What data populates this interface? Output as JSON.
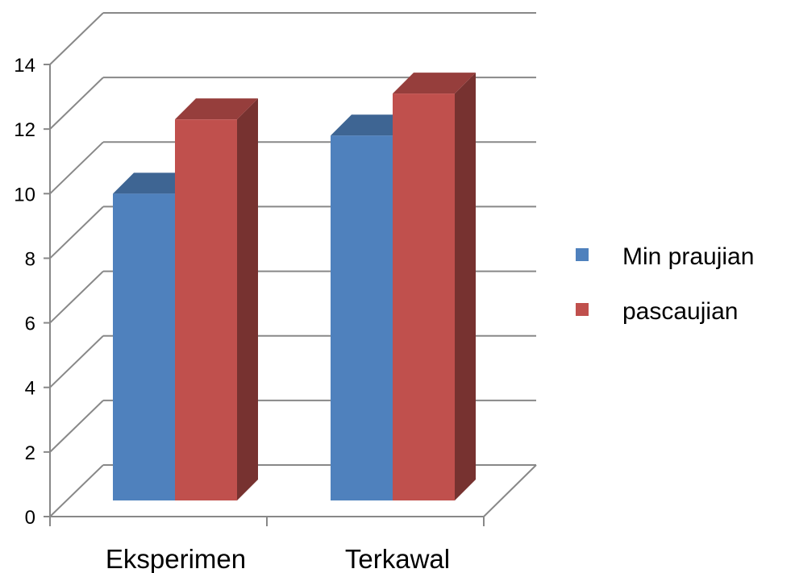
{
  "chart_data": {
    "type": "bar",
    "style": "3d-clustered",
    "categories": [
      "Eksperimen",
      "Terkawal"
    ],
    "series": [
      {
        "name": "Min praujian",
        "values": [
          9.5,
          11.3
        ],
        "color": "#4f81bd"
      },
      {
        "name": "pascaujian",
        "values": [
          11.8,
          12.6
        ],
        "color": "#c0504d"
      }
    ],
    "yticks": [
      "0",
      "2",
      "4",
      "6",
      "8",
      "10",
      "12",
      "14"
    ],
    "ylim": [
      0,
      14
    ],
    "grid": true,
    "legend": "right"
  }
}
